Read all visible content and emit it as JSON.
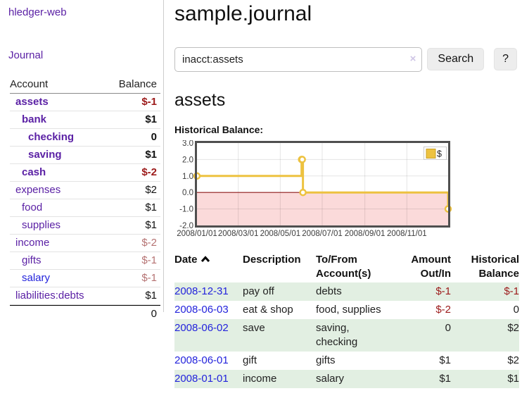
{
  "sidebar": {
    "brand": "hledger-web",
    "journal_label": "Journal",
    "accounts_table": {
      "headers": {
        "account": "Account",
        "balance": "Balance"
      },
      "rows": [
        {
          "name": "assets",
          "depth": 0,
          "bold": true,
          "link_color": "purple",
          "balance": "$-1",
          "balance_style": "neg",
          "balance_bold": true
        },
        {
          "name": "bank",
          "depth": 1,
          "bold": true,
          "link_color": "purple",
          "balance": "$1",
          "balance_style": "",
          "balance_bold": true
        },
        {
          "name": "checking",
          "depth": 2,
          "bold": true,
          "link_color": "purple",
          "balance": "0",
          "balance_style": "",
          "balance_bold": true
        },
        {
          "name": "saving",
          "depth": 2,
          "bold": true,
          "link_color": "purple",
          "balance": "$1",
          "balance_style": "",
          "balance_bold": true
        },
        {
          "name": "cash",
          "depth": 1,
          "bold": true,
          "link_color": "purple",
          "balance": "$-2",
          "balance_style": "neg",
          "balance_bold": true
        },
        {
          "name": "expenses",
          "depth": 0,
          "bold": false,
          "link_color": "purple",
          "balance": "$2",
          "balance_style": "",
          "balance_bold": false
        },
        {
          "name": "food",
          "depth": 1,
          "bold": false,
          "link_color": "purple",
          "balance": "$1",
          "balance_style": "",
          "balance_bold": false
        },
        {
          "name": "supplies",
          "depth": 1,
          "bold": false,
          "link_color": "purple",
          "balance": "$1",
          "balance_style": "",
          "balance_bold": false
        },
        {
          "name": "income",
          "depth": 0,
          "bold": false,
          "link_color": "purple",
          "balance": "$-2",
          "balance_style": "negsoft",
          "balance_bold": false
        },
        {
          "name": "gifts",
          "depth": 1,
          "bold": false,
          "link_color": "purple",
          "balance": "$-1",
          "balance_style": "negsoft",
          "balance_bold": false
        },
        {
          "name": "salary",
          "depth": 1,
          "bold": false,
          "link_color": "blue",
          "balance": "$-1",
          "balance_style": "negsoft",
          "balance_bold": false
        },
        {
          "name": "liabilities:debts",
          "depth": 0,
          "bold": false,
          "link_color": "purple",
          "balance": "$1",
          "balance_style": "",
          "balance_bold": false
        }
      ],
      "total": "0"
    }
  },
  "header": {
    "title": "sample.journal"
  },
  "search": {
    "query": "inacct:assets",
    "clear_icon": "×",
    "search_button": "Search",
    "help_button": "?"
  },
  "account_page": {
    "heading": "assets",
    "chart_label": "Historical Balance:"
  },
  "chart_data": {
    "type": "line",
    "title": "Historical Balance",
    "step": true,
    "series": [
      {
        "name": "$",
        "color": "#edc240",
        "points": [
          [
            "2008-01-01",
            1
          ],
          [
            "2008-06-01",
            2
          ],
          [
            "2008-06-02",
            2
          ],
          [
            "2008-06-03",
            0
          ],
          [
            "2008-12-31",
            -1
          ]
        ]
      }
    ],
    "x_range": [
      "2008-01-01",
      "2008-12-31"
    ],
    "x_ticks": [
      "2008/01/01",
      "2008/03/01",
      "2008/05/01",
      "2008/07/01",
      "2008/09/01",
      "2008/11/01"
    ],
    "y_ticks": [
      "3.0",
      "2.0",
      "1.0",
      "0.0",
      "-1.0",
      "-2.0"
    ],
    "ylim": [
      -2,
      3
    ],
    "grid": true,
    "negative_region_shaded": true,
    "legend": {
      "label": "$",
      "position": "top-right"
    }
  },
  "register_table": {
    "headers": {
      "date": "Date",
      "description": "Description",
      "accounts": "To/From Account(s)",
      "amount": "Amount Out/In",
      "balance": "Historical Balance"
    },
    "rows": [
      {
        "date": "2008-12-31",
        "description": "pay off",
        "accounts": "debts",
        "amount": "$-1",
        "amount_negative": true,
        "balance": "$-1",
        "balance_negative": true
      },
      {
        "date": "2008-06-03",
        "description": "eat & shop",
        "accounts": "food, supplies",
        "amount": "$-2",
        "amount_negative": true,
        "balance": "0",
        "balance_negative": false
      },
      {
        "date": "2008-06-02",
        "description": "save",
        "accounts": "saving, checking",
        "amount": "0",
        "amount_negative": false,
        "balance": "$2",
        "balance_negative": false
      },
      {
        "date": "2008-06-01",
        "description": "gift",
        "accounts": "gifts",
        "amount": "$1",
        "amount_negative": false,
        "balance": "$2",
        "balance_negative": false
      },
      {
        "date": "2008-01-01",
        "description": "income",
        "accounts": "salary",
        "amount": "$1",
        "amount_negative": false,
        "balance": "$1",
        "balance_negative": false
      }
    ]
  },
  "colors": {
    "link_purple": "#5b21a5",
    "link_blue": "#2323dc",
    "negative_strong": "#9c1a1a",
    "negative_soft": "#b57272",
    "zebra_green": "#e2efe2",
    "chart_line": "#edc240",
    "chart_negative_fill": "#fbdada",
    "chart_zero_line": "#8c1717",
    "chart_border": "#4f4f4f"
  }
}
